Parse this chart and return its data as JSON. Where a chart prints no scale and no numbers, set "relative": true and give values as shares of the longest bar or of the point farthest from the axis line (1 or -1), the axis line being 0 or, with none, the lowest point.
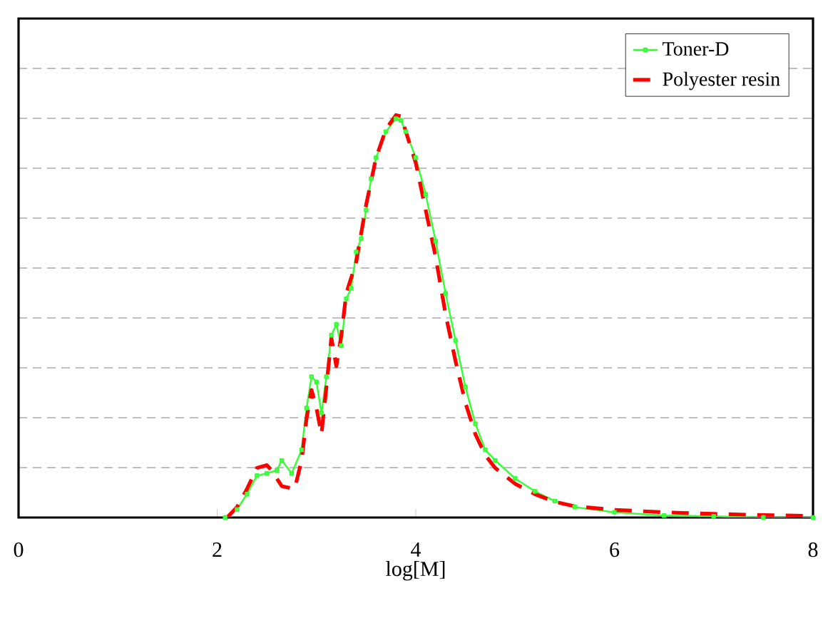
{
  "chart_data": {
    "type": "line",
    "xlabel": "log[M]",
    "relative": true,
    "xlim": [
      0,
      8
    ],
    "xticks": [
      0,
      2,
      4,
      6,
      8
    ],
    "grid": "y",
    "legend": "top right",
    "series": [
      {
        "name": "Toner-D",
        "color": "#33ff33",
        "marker": "square",
        "line_style": "solid",
        "x": [
          2.08,
          2.2,
          2.3,
          2.4,
          2.5,
          2.6,
          2.65,
          2.75,
          2.85,
          2.9,
          2.95,
          3.0,
          3.05,
          3.1,
          3.15,
          3.2,
          3.25,
          3.3,
          3.35,
          3.4,
          3.45,
          3.5,
          3.55,
          3.6,
          3.7,
          3.8,
          3.85,
          3.9,
          4.0,
          4.1,
          4.2,
          4.3,
          4.4,
          4.5,
          4.6,
          4.7,
          4.8,
          5.0,
          5.2,
          5.4,
          5.6,
          6.0,
          6.5,
          7.0,
          7.5,
          8.0
        ],
        "values": [
          0,
          0.02,
          0.058,
          0.104,
          0.11,
          0.117,
          0.142,
          0.11,
          0.168,
          0.272,
          0.35,
          0.337,
          0.26,
          0.35,
          0.453,
          0.48,
          0.427,
          0.544,
          0.57,
          0.66,
          0.693,
          0.764,
          0.842,
          0.894,
          0.959,
          0.991,
          0.987,
          0.959,
          0.894,
          0.803,
          0.687,
          0.557,
          0.44,
          0.324,
          0.233,
          0.168,
          0.142,
          0.097,
          0.065,
          0.041,
          0.026,
          0.013,
          0.005,
          0.003,
          0,
          0
        ]
      },
      {
        "name": "Polyester resin",
        "color": "#ff0000",
        "marker": "none",
        "line_style": "dashed",
        "x": [
          2.1,
          2.2,
          2.3,
          2.4,
          2.5,
          2.55,
          2.65,
          2.78,
          2.85,
          2.9,
          2.95,
          3.0,
          3.05,
          3.1,
          3.15,
          3.2,
          3.25,
          3.3,
          3.4,
          3.5,
          3.6,
          3.7,
          3.8,
          3.85,
          3.9,
          4.0,
          4.1,
          4.2,
          4.3,
          4.4,
          4.5,
          4.6,
          4.7,
          4.8,
          5.0,
          5.2,
          5.4,
          5.6,
          6.0,
          6.5,
          7.0,
          7.5,
          8.0
        ],
        "values": [
          0,
          0.026,
          0.071,
          0.123,
          0.13,
          0.117,
          0.078,
          0.071,
          0.142,
          0.246,
          0.317,
          0.272,
          0.207,
          0.324,
          0.447,
          0.376,
          0.453,
          0.557,
          0.635,
          0.777,
          0.894,
          0.965,
          1.0,
          0.997,
          0.959,
          0.881,
          0.764,
          0.648,
          0.505,
          0.389,
          0.285,
          0.207,
          0.155,
          0.123,
          0.084,
          0.058,
          0.039,
          0.028,
          0.019,
          0.013,
          0.009,
          0.006,
          0.004
        ]
      }
    ]
  }
}
